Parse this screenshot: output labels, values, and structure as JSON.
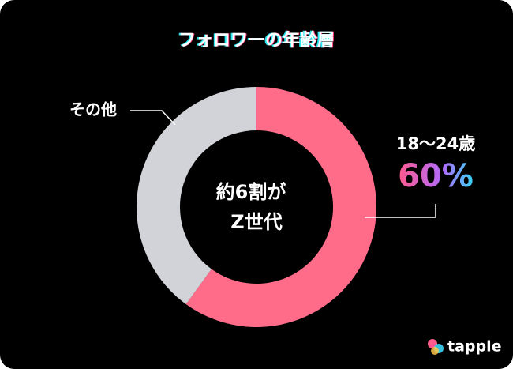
{
  "chart_data": {
    "type": "donut",
    "title": "フォロワーの年齢層",
    "categories": [
      "18～24歳",
      "その他"
    ],
    "values": [
      60,
      40
    ],
    "value_labels": [
      "60%",
      null
    ],
    "colors": [
      "#ff6c8a",
      "#d1d3d9"
    ],
    "center_text": [
      "約6割が",
      "Z世代"
    ]
  },
  "brand": "tapple"
}
